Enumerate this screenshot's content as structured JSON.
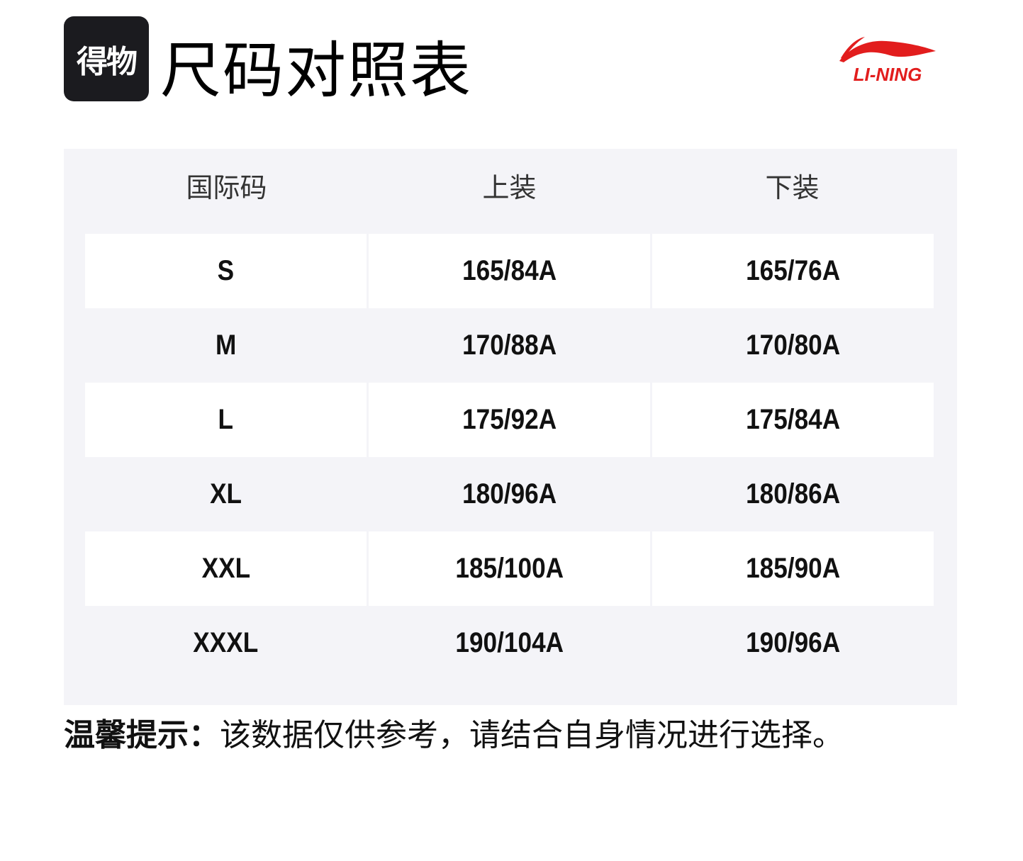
{
  "header": {
    "brand_logo_text": "得物",
    "title": "尺码对照表",
    "lining_logo_text": "LI-NING",
    "lining_color": "#e21d1d"
  },
  "table": {
    "columns": [
      "国际码",
      "上装",
      "下装"
    ],
    "rows": [
      [
        "S",
        "165/84A",
        "165/76A"
      ],
      [
        "M",
        "170/88A",
        "170/80A"
      ],
      [
        "L",
        "175/92A",
        "175/84A"
      ],
      [
        "XL",
        "180/96A",
        "180/86A"
      ],
      [
        "XXL",
        "185/100A",
        "185/90A"
      ],
      [
        "XXXL",
        "190/104A",
        "190/96A"
      ]
    ]
  },
  "footer": {
    "tip_label": "温馨提示：",
    "tip_text": "该数据仅供参考，请结合自身情况进行选择。"
  }
}
